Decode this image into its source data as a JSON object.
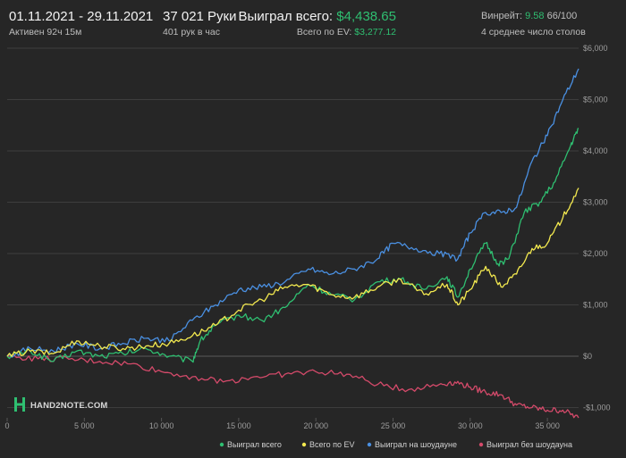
{
  "header": {
    "date_range": "01.11.2021 - 29.11.2021",
    "active_time": "Активен 92ч 15м",
    "hands": "37 021 Руки",
    "hands_per_hour": "401 рук в час",
    "won_total_label": "Выиграл всего:",
    "won_total_value": "$4,438.65",
    "ev_total_label": "Всего по EV:",
    "ev_total_value": "$3,277.12",
    "winrate_label": "Винрейт:",
    "winrate_value": "9.58",
    "winrate_hands": "66/100",
    "tables_avg": "4 среднее число столов"
  },
  "logo": {
    "text": "HAND2NOTE.COM"
  },
  "colors": {
    "background": "#262626",
    "grid": "#3d3d3d",
    "won_total": "#2fbf71",
    "ev": "#f3e94f",
    "showdown": "#4a90e2",
    "non_showdown": "#d44a6a",
    "accent_green": "#2fbf71"
  },
  "chart_data": {
    "type": "line",
    "xlim": [
      0,
      37021
    ],
    "ylim": [
      -1200,
      6000
    ],
    "x_ticks": [
      0,
      5000,
      10000,
      15000,
      20000,
      25000,
      30000,
      35000
    ],
    "x_tick_labels": [
      "0",
      "5 000",
      "10 000",
      "15 000",
      "20 000",
      "25 000",
      "30 000",
      "35 000"
    ],
    "y_ticks": [
      -1000,
      0,
      1000,
      2000,
      3000,
      4000,
      5000,
      6000
    ],
    "y_tick_labels": [
      "-$1,000",
      "$0",
      "$1,000",
      "$2,000",
      "$3,000",
      "$4,000",
      "$5,000",
      "$6,000"
    ],
    "grid": true,
    "legend_position": "bottom-right",
    "series": [
      {
        "name": "Выиграл всего",
        "color": "#2fbf71",
        "x": [
          0,
          1500,
          3000,
          4500,
          6000,
          7500,
          9000,
          10500,
          12000,
          12500,
          13500,
          15000,
          16500,
          18000,
          19500,
          21000,
          22500,
          24000,
          25500,
          27000,
          28500,
          29200,
          30000,
          31000,
          31800,
          32500,
          33500,
          34500,
          35500,
          36500,
          37021
        ],
        "y": [
          0,
          100,
          -100,
          100,
          0,
          50,
          150,
          0,
          -100,
          300,
          600,
          800,
          700,
          950,
          1400,
          1200,
          1100,
          1450,
          1500,
          1300,
          1550,
          1150,
          1700,
          2200,
          1800,
          1900,
          2800,
          3000,
          3400,
          4100,
          4438.65
        ]
      },
      {
        "name": "Всего по EV",
        "color": "#f3e94f",
        "x": [
          0,
          1500,
          3000,
          4500,
          6000,
          7500,
          9000,
          10500,
          12000,
          13500,
          15000,
          16500,
          18000,
          19500,
          21000,
          22500,
          24000,
          25500,
          27000,
          28500,
          29200,
          30000,
          31000,
          32000,
          33000,
          34000,
          35000,
          36000,
          37021
        ],
        "y": [
          0,
          100,
          50,
          300,
          200,
          150,
          200,
          250,
          400,
          600,
          900,
          1100,
          1350,
          1400,
          1200,
          1150,
          1350,
          1500,
          1200,
          1400,
          1000,
          1300,
          1750,
          1350,
          1600,
          2100,
          2200,
          2700,
          3277.12
        ]
      },
      {
        "name": "Выиграл на шоудауне",
        "color": "#4a90e2",
        "x": [
          0,
          1500,
          3000,
          4500,
          6000,
          7500,
          9000,
          10500,
          12000,
          13500,
          15000,
          16500,
          18000,
          19500,
          21000,
          22500,
          24000,
          25000,
          26500,
          28000,
          29200,
          30000,
          31000,
          32000,
          33000,
          34000,
          35000,
          36000,
          37021
        ],
        "y": [
          0,
          150,
          100,
          250,
          150,
          250,
          350,
          300,
          700,
          1000,
          1300,
          1350,
          1450,
          1700,
          1600,
          1700,
          1900,
          2200,
          2100,
          2000,
          1900,
          2400,
          2800,
          2800,
          2900,
          3800,
          4300,
          5000,
          5600
        ]
      },
      {
        "name": "Выиграл без шоудауна",
        "color": "#d44a6a",
        "x": [
          0,
          2000,
          4000,
          6000,
          8000,
          10000,
          12000,
          14000,
          16000,
          18000,
          20000,
          22000,
          24000,
          26000,
          28000,
          29000,
          30000,
          31000,
          32000,
          33000,
          34000,
          35000,
          36000,
          37021
        ],
        "y": [
          0,
          -50,
          -60,
          -100,
          -150,
          -300,
          -400,
          -500,
          -400,
          -350,
          -300,
          -350,
          -550,
          -650,
          -550,
          -500,
          -600,
          -700,
          -750,
          -950,
          -1000,
          -1050,
          -1050,
          -1200
        ]
      }
    ]
  }
}
